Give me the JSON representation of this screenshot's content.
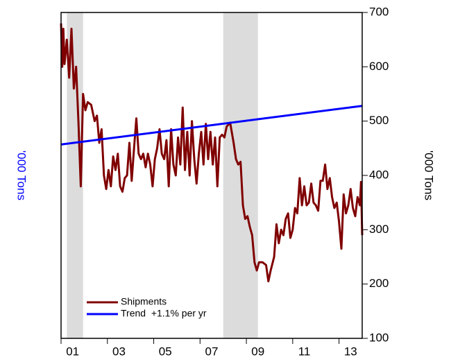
{
  "chart_data": {
    "type": "line",
    "ylabel": "'000 Tons",
    "y2label": "'000 Tons",
    "xlim": [
      2001,
      2014
    ],
    "xticks": [
      {
        "value": 2001,
        "label": "01"
      },
      {
        "value": 2003,
        "label": "03"
      },
      {
        "value": 2005,
        "label": "05"
      },
      {
        "value": 2007,
        "label": "07"
      },
      {
        "value": 2009,
        "label": "09"
      },
      {
        "value": 2011,
        "label": "11"
      },
      {
        "value": 2013,
        "label": "13"
      }
    ],
    "ylim": [
      100,
      700
    ],
    "yticks": [
      100,
      200,
      300,
      400,
      500,
      600,
      700
    ],
    "shaded": [
      [
        2001.25,
        2001.95
      ],
      [
        2008.0,
        2009.5
      ]
    ],
    "shade_color": "#dcdcdc",
    "series": [
      {
        "name": "Shipments",
        "color": "#800000",
        "x": [
          2001.0,
          2001.05,
          2001.1,
          2001.15,
          2001.25,
          2001.35,
          2001.45,
          2001.55,
          2001.65,
          2001.75,
          2001.85,
          2001.95,
          2002.05,
          2002.15,
          2002.3,
          2002.45,
          2002.55,
          2002.65,
          2002.75,
          2002.85,
          2002.95,
          2003.05,
          2003.15,
          2003.25,
          2003.35,
          2003.45,
          2003.55,
          2003.65,
          2003.75,
          2003.85,
          2003.95,
          2004.05,
          2004.15,
          2004.25,
          2004.35,
          2004.45,
          2004.55,
          2004.65,
          2004.75,
          2004.85,
          2004.95,
          2005.05,
          2005.15,
          2005.25,
          2005.35,
          2005.45,
          2005.55,
          2005.65,
          2005.75,
          2005.85,
          2005.95,
          2006.05,
          2006.15,
          2006.25,
          2006.35,
          2006.45,
          2006.55,
          2006.65,
          2006.75,
          2006.85,
          2006.95,
          2007.05,
          2007.15,
          2007.25,
          2007.35,
          2007.45,
          2007.55,
          2007.65,
          2007.75,
          2007.85,
          2007.95,
          2008.05,
          2008.15,
          2008.3,
          2008.45,
          2008.55,
          2008.65,
          2008.75,
          2008.85,
          2008.95,
          2009.05,
          2009.15,
          2009.25,
          2009.35,
          2009.45,
          2009.55,
          2009.7,
          2009.85,
          2009.95,
          2010.05,
          2010.2,
          2010.3,
          2010.4,
          2010.5,
          2010.6,
          2010.7,
          2010.8,
          2010.9,
          2011.0,
          2011.1,
          2011.2,
          2011.3,
          2011.4,
          2011.5,
          2011.6,
          2011.7,
          2011.8,
          2011.9,
          2012.0,
          2012.1,
          2012.2,
          2012.3,
          2012.4,
          2012.5,
          2012.6,
          2012.7,
          2012.8,
          2012.9,
          2013.0,
          2013.1,
          2013.2,
          2013.3,
          2013.4,
          2013.5,
          2013.6,
          2013.7,
          2013.8,
          2013.9,
          2013.95,
          2014.0
        ],
        "values": [
          680,
          600,
          670,
          605,
          650,
          580,
          670,
          560,
          600,
          500,
          380,
          550,
          520,
          535,
          530,
          500,
          510,
          460,
          485,
          400,
          375,
          410,
          380,
          435,
          410,
          440,
          380,
          370,
          395,
          400,
          460,
          390,
          450,
          505,
          440,
          430,
          440,
          415,
          440,
          420,
          380,
          430,
          450,
          485,
          440,
          430,
          465,
          380,
          485,
          420,
          400,
          470,
          420,
          525,
          410,
          480,
          400,
          500,
          430,
          385,
          440,
          480,
          420,
          495,
          430,
          480,
          420,
          470,
          380,
          470,
          475,
          470,
          490,
          497,
          460,
          430,
          420,
          425,
          345,
          320,
          325,
          305,
          290,
          240,
          225,
          240,
          240,
          235,
          205,
          225,
          250,
          310,
          275,
          300,
          290,
          320,
          330,
          285,
          300,
          340,
          330,
          395,
          345,
          380,
          345,
          350,
          385,
          350,
          345,
          335,
          390,
          390,
          420,
          375,
          395,
          360,
          340,
          350,
          315,
          265,
          365,
          330,
          345,
          375,
          340,
          325,
          360,
          345,
          388,
          290
        ]
      },
      {
        "name": "Trend  +1.1% per yr",
        "color": "#0000ff",
        "x": [
          2001,
          2014
        ],
        "values": [
          457,
          528
        ]
      }
    ]
  }
}
